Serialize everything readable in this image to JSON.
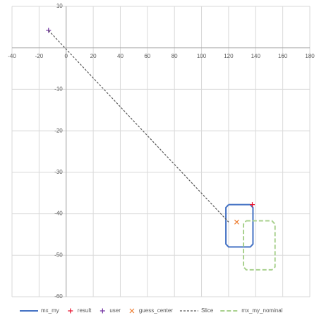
{
  "chart_data": {
    "type": "scatter",
    "xlim": [
      -40,
      180
    ],
    "ylim": [
      -60,
      10
    ],
    "xticks": [
      -40,
      -20,
      0,
      20,
      40,
      60,
      80,
      100,
      120,
      140,
      160,
      180
    ],
    "yticks": [
      10,
      -10,
      -20,
      -30,
      -40,
      -50,
      -60
    ],
    "grid": true,
    "legend": "bottom",
    "series": [
      {
        "name": "mx_my",
        "color": "#4472c4",
        "style": "line",
        "x": [
          120,
          136,
          138,
          138,
          136,
          120,
          118,
          118,
          120
        ],
        "y": [
          -37.8,
          -37.8,
          -38.5,
          -47.3,
          -48,
          -48,
          -47.3,
          -38.5,
          -37.8
        ]
      },
      {
        "name": "result",
        "color": "#e8112d",
        "style": "plus",
        "x": [
          137.5
        ],
        "y": [
          -37.8
        ]
      },
      {
        "name": "user",
        "color": "#7030a0",
        "style": "plus",
        "x": [
          -13
        ],
        "y": [
          4.2
        ]
      },
      {
        "name": "guess_center",
        "color": "#ed7d31",
        "style": "cross",
        "x": [
          126
        ],
        "y": [
          -42
        ]
      },
      {
        "name": "Slice",
        "color": "#595959",
        "style": "dash",
        "x": [
          -13,
          120
        ],
        "y": [
          4.2,
          -42
        ]
      },
      {
        "name": "mx_my_nominal",
        "color": "#a9d18e",
        "style": "bigdash",
        "x": [
          133,
          152,
          154.3,
          154.3,
          152,
          133,
          131,
          131,
          133
        ],
        "y": [
          -41.7,
          -41.7,
          -42.5,
          -52.8,
          -53.5,
          -53.5,
          -52.8,
          -42.5,
          -41.7
        ]
      }
    ]
  }
}
